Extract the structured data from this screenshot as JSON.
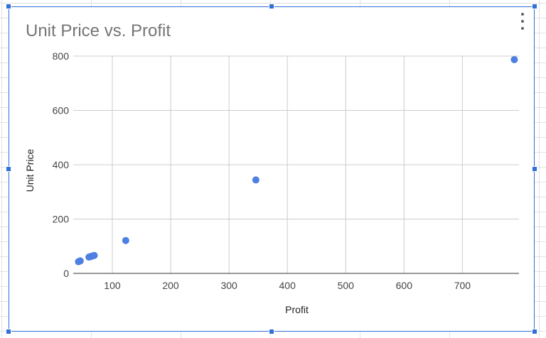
{
  "chart_data": {
    "type": "scatter",
    "title": "Unit Price vs. Profit",
    "xlabel": "Profit",
    "ylabel": "Unit Price",
    "xlim": [
      33,
      797
    ],
    "ylim": [
      0,
      800
    ],
    "x_ticks": [
      100,
      200,
      300,
      400,
      500,
      600,
      700
    ],
    "y_ticks": [
      0,
      200,
      400,
      600,
      800
    ],
    "grid": true,
    "points": [
      {
        "x": 42,
        "y": 43
      },
      {
        "x": 45,
        "y": 46
      },
      {
        "x": 60,
        "y": 60
      },
      {
        "x": 63,
        "y": 62
      },
      {
        "x": 66,
        "y": 64
      },
      {
        "x": 69,
        "y": 66
      },
      {
        "x": 123,
        "y": 121
      },
      {
        "x": 346,
        "y": 344
      },
      {
        "x": 789,
        "y": 787
      }
    ],
    "marker_color": "#4e7fe3"
  },
  "colors": {
    "selection": "#2f6fd6",
    "gridline": "#cccccc",
    "axis": "#333333"
  },
  "menu_icon": "more-vert-icon"
}
